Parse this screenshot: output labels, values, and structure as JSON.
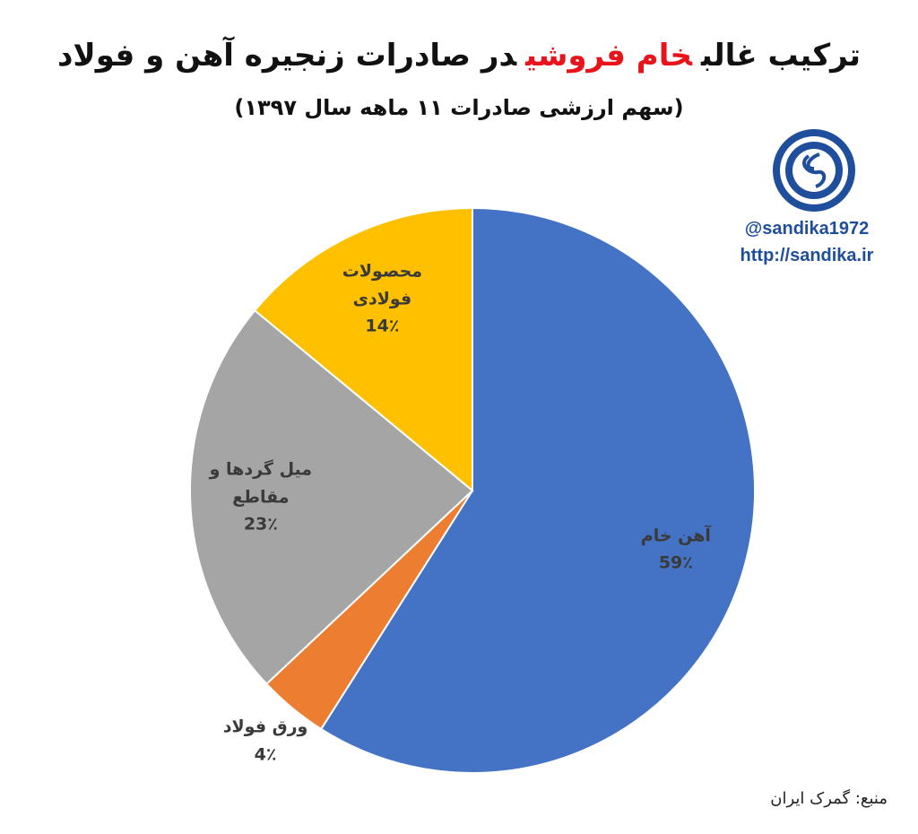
{
  "chart_data": {
    "type": "pie",
    "title_segments": [
      {
        "text": "ترکیب غالب",
        "color": "#111111"
      },
      {
        "text": "خام فروشی",
        "color": "#e8141b"
      },
      {
        "text": "در صادرات زنجیره آهن و فولاد",
        "color": "#111111"
      }
    ],
    "subtitle": "(سهم ارزشی صادرات ۱۱ ماهه سال ۱۳۹۷)",
    "categories": [
      "آهن خام",
      "ورق فولاد",
      "میل گردها و مقاطع",
      "محصولات فولادی"
    ],
    "values": [
      59,
      4,
      23,
      14
    ],
    "value_labels": [
      "59٪",
      "4٪",
      "23٪",
      "14٪"
    ],
    "colors": [
      "#4472c4",
      "#ed7d31",
      "#a5a5a5",
      "#ffc000"
    ],
    "source": "منبع: گمرک ایران",
    "handles": [
      "@sandika1972",
      "http://sandika.ir"
    ]
  }
}
